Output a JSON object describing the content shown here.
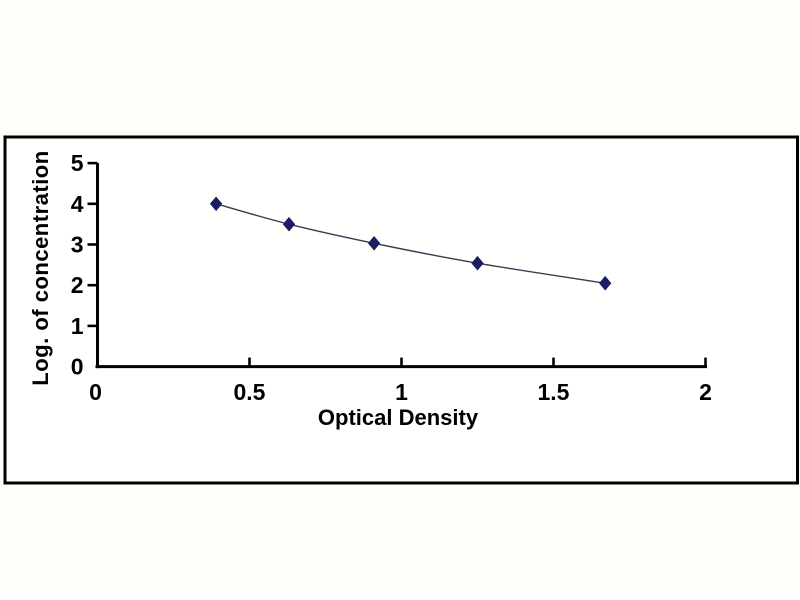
{
  "chart_data": {
    "type": "line",
    "title": "",
    "xlabel": "Optical Density",
    "ylabel": "Log. of concentration",
    "x": [
      0.39,
      0.63,
      0.91,
      1.25,
      1.67
    ],
    "y": [
      4.0,
      3.5,
      3.03,
      2.54,
      2.05
    ],
    "x_ticks": [
      0,
      0.5,
      1,
      1.5,
      2
    ],
    "x_tick_labels": [
      "0",
      "0.5",
      "1",
      "1.5",
      "2"
    ],
    "y_ticks": [
      0,
      1,
      2,
      3,
      4,
      5
    ],
    "y_tick_labels": [
      "0",
      "1",
      "2",
      "3",
      "4",
      "5"
    ],
    "xlim": [
      0,
      2
    ],
    "ylim": [
      0,
      5
    ],
    "grid": false,
    "legend": false,
    "marker": "diamond",
    "curve": "smooth",
    "colors": {
      "marker": "#1c1c62",
      "line": "#3b3b52",
      "axis": "#000000",
      "text": "#000000",
      "frame_border": "#000000",
      "background": "#fefefa"
    }
  }
}
